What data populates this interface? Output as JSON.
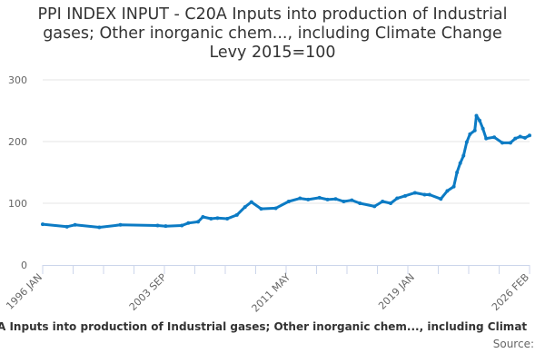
{
  "chart_data": {
    "type": "line",
    "title": "PPI INDEX INPUT - C20A Inputs into production of Industrial gases; Other inorganic chem..., including Climate Change Levy 2015=100",
    "title_lines": [
      "PPI INDEX INPUT - C20A Inputs into production of Industrial",
      "gases; Other inorganic chem..., including Climate Change",
      "Levy 2015=100"
    ],
    "xlabel": "",
    "ylabel": "",
    "ylim": [
      0,
      300
    ],
    "xlim": [
      1996.0,
      2026.083
    ],
    "yticks": [
      0,
      100,
      200,
      300
    ],
    "xtick_labels": [
      {
        "label": "1996 JAN",
        "x": 1996.0
      },
      {
        "label": "2003 SEP",
        "x": 2003.67
      },
      {
        "label": "2011 MAY",
        "x": 2011.33
      },
      {
        "label": "2019 JAN",
        "x": 2019.0
      },
      {
        "label": "2026 FEB",
        "x": 2026.083
      }
    ],
    "grid": true,
    "series": [
      {
        "name": "C20A Inputs into production of Industrial gases; Other inorganic chem..., including Climate Change Levy",
        "color": "#0c7bc4",
        "x": [
          1996.0,
          1997.5,
          1998.0,
          1999.5,
          2000.8,
          2003.1,
          2003.6,
          2004.6,
          2005.0,
          2005.6,
          2005.9,
          2006.4,
          2006.8,
          2007.4,
          2008.0,
          2008.5,
          2008.9,
          2009.5,
          2010.4,
          2011.2,
          2011.9,
          2012.4,
          2013.1,
          2013.6,
          2014.1,
          2014.6,
          2015.1,
          2015.6,
          2016.5,
          2017.0,
          2017.5,
          2017.9,
          2018.4,
          2019.0,
          2019.6,
          2019.9,
          2020.6,
          2021.0,
          2021.4,
          2021.6,
          2021.8,
          2022.0,
          2022.2,
          2022.4,
          2022.7,
          2022.8,
          2023.0,
          2023.2,
          2023.4,
          2023.9,
          2024.4,
          2024.9,
          2025.2,
          2025.5,
          2025.8,
          2026.083
        ],
        "values": [
          66,
          62,
          65,
          61,
          65,
          64,
          63,
          64,
          68,
          70,
          78,
          75,
          76,
          75,
          81,
          94,
          102,
          91,
          92,
          103,
          108,
          106,
          109,
          106,
          107,
          103,
          105,
          100,
          95,
          103,
          100,
          108,
          112,
          117,
          114,
          114,
          107,
          120,
          127,
          150,
          165,
          177,
          199,
          212,
          218,
          242,
          234,
          221,
          205,
          207,
          198,
          198,
          205,
          208,
          206,
          210
        ]
      }
    ]
  },
  "footer": {
    "series_label_visible": "A Inputs into production of Industrial gases; Other inorganic chem..., including Climat",
    "source_label": "Source:"
  }
}
